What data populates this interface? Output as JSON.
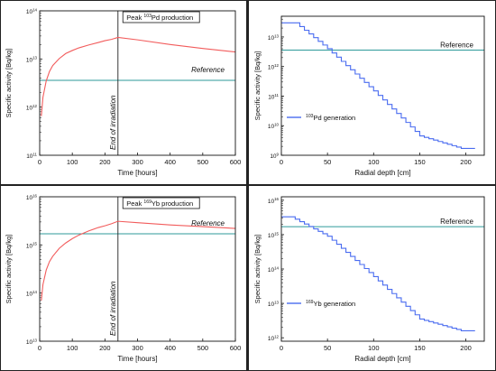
{
  "chart_data": [
    {
      "id": "pd-time",
      "type": "line",
      "title": "Peak ¹⁰³Pd production",
      "title_parts": {
        "pre": "Peak ",
        "sup": "103",
        "post": "Pd production"
      },
      "xlabel": "Time [hours]",
      "ylabel": "Specific activity [Bq/kg]",
      "xlim": [
        0,
        600
      ],
      "ylim_log10": [
        11,
        14
      ],
      "x_ticks": [
        0,
        100,
        200,
        300,
        400,
        500,
        600
      ],
      "y_ticks": [
        {
          "base": "10",
          "exp": "11"
        },
        {
          "base": "10",
          "exp": "12"
        },
        {
          "base": "10",
          "exp": "13"
        },
        {
          "base": "10",
          "exp": "14"
        }
      ],
      "y_ticks_log10": [
        11,
        12,
        13,
        14
      ],
      "series": [
        {
          "color": "#f25c5c",
          "x": [
            5,
            10,
            20,
            30,
            40,
            60,
            80,
            100,
            120,
            150,
            180,
            200,
            220,
            240,
            300,
            400,
            500,
            600
          ],
          "y": [
            650000000000.0,
            1600000000000.0,
            3500000000000.0,
            5500000000000.0,
            7300000000000.0,
            10200000000000.0,
            13000000000000.0,
            15000000000000.0,
            17000000000000.0,
            19500000000000.0,
            22000000000000.0,
            24000000000000.0,
            25500000000000.0,
            28000000000000.0,
            25000000000000.0,
            20000000000000.0,
            16500000000000.0,
            14000000000000.0
          ]
        }
      ],
      "reference": {
        "label": "Reference",
        "y": 3600000000000.0,
        "color": "#2e9a9a"
      },
      "annotation": {
        "label": "End of irradiation",
        "x": 240
      }
    },
    {
      "id": "pd-depth",
      "type": "line",
      "xlabel": "Radial depth [cm]",
      "ylabel": "Specific activity [Bq/kg]",
      "xlim": [
        0,
        220
      ],
      "ylim_log10": [
        9,
        13.7
      ],
      "x_ticks": [
        0,
        50,
        100,
        150,
        200
      ],
      "y_ticks": [
        {
          "base": "10",
          "exp": "9"
        },
        {
          "base": "10",
          "exp": "10"
        },
        {
          "base": "10",
          "exp": "11"
        },
        {
          "base": "10",
          "exp": "12"
        },
        {
          "base": "10",
          "exp": "13"
        }
      ],
      "y_ticks_log10": [
        9,
        10,
        11,
        12,
        13
      ],
      "series": [
        {
          "name": "¹⁰³Pd generation",
          "name_parts": {
            "pre": "",
            "sup": "103",
            "post": "Pd generation"
          },
          "color": "#4a6cf0",
          "step": 5,
          "x": [
            0,
            15,
            50,
            100,
            150,
            195,
            205
          ],
          "y": [
            30000000000000.0,
            30000000000000.0,
            4000000000000.0,
            150000000000.0,
            4500000000.0,
            1700000000.0,
            1700000000.0
          ]
        }
      ],
      "reference": {
        "label": "Reference",
        "y": 3600000000000.0,
        "color": "#2e9a9a"
      },
      "legend": "bottom-left"
    },
    {
      "id": "yb-time",
      "type": "line",
      "title": "Peak ¹⁶⁹Yb production",
      "title_parts": {
        "pre": "Peak ",
        "sup": "169",
        "post": "Yb production"
      },
      "xlabel": "Time [hours]",
      "ylabel": "Specific activity [Bq/kg]",
      "xlim": [
        0,
        600
      ],
      "ylim_log10": [
        13,
        16
      ],
      "x_ticks": [
        0,
        100,
        200,
        300,
        400,
        500,
        600
      ],
      "y_ticks": [
        {
          "base": "10",
          "exp": "13"
        },
        {
          "base": "10",
          "exp": "14"
        },
        {
          "base": "10",
          "exp": "15"
        },
        {
          "base": "10",
          "exp": "16"
        }
      ],
      "y_ticks_log10": [
        13,
        14,
        15,
        16
      ],
      "series": [
        {
          "color": "#f25c5c",
          "x": [
            5,
            10,
            20,
            30,
            40,
            60,
            80,
            100,
            120,
            150,
            180,
            200,
            220,
            240,
            300,
            400,
            500,
            600
          ],
          "y": [
            70000000000000.0,
            150000000000000.0,
            300000000000000.0,
            450000000000000.0,
            580000000000000.0,
            850000000000000.0,
            1100000000000000.0,
            1350000000000000.0,
            1600000000000000.0,
            1950000000000000.0,
            2300000000000000.0,
            2500000000000000.0,
            2750000000000000.0,
            3100000000000000.0,
            2900000000000000.0,
            2600000000000000.0,
            2400000000000000.0,
            2200000000000000.0
          ]
        }
      ],
      "reference": {
        "label": "Reference",
        "y": 1700000000000000.0,
        "color": "#2e9a9a"
      },
      "annotation": {
        "label": "End of irradiation",
        "x": 240
      }
    },
    {
      "id": "yb-depth",
      "type": "line",
      "xlabel": "Radial depth [cm]",
      "ylabel": "Specific activity [Bq/kg]",
      "xlim": [
        0,
        220
      ],
      "ylim_log10": [
        11.9,
        16.1
      ],
      "x_ticks": [
        0,
        50,
        100,
        150,
        200
      ],
      "y_ticks": [
        {
          "base": "10",
          "exp": "12"
        },
        {
          "base": "10",
          "exp": "13"
        },
        {
          "base": "10",
          "exp": "14"
        },
        {
          "base": "10",
          "exp": "15"
        },
        {
          "base": "10",
          "exp": "16"
        }
      ],
      "y_ticks_log10": [
        12,
        13,
        14,
        15,
        16
      ],
      "series": [
        {
          "name": "¹⁶⁹Yb generation",
          "name_parts": {
            "pre": "",
            "sup": "169",
            "post": "Yb generation"
          },
          "color": "#4a6cf0",
          "step": 5,
          "x": [
            0,
            10,
            50,
            100,
            150,
            195,
            205
          ],
          "y": [
            3300000000000000.0,
            3300000000000000.0,
            900000000000000.0,
            60000000000000.0,
            3500000000000.0,
            1600000000000.0,
            1600000000000.0
          ]
        }
      ],
      "reference": {
        "label": "Reference",
        "y": 1700000000000000.0,
        "color": "#2e9a9a"
      },
      "legend": "bottom-left"
    }
  ]
}
